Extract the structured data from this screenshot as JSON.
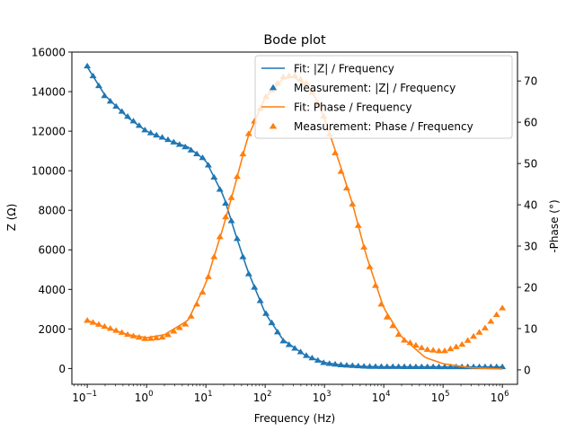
{
  "chart_data": {
    "type": "line",
    "title": "Bode plot",
    "xlabel": "Frequency (Hz)",
    "ylabel_left": "Z (Ω)",
    "ylabel_right": "-Phase (°)",
    "x_scale": "log",
    "xlim": [
      0.055,
      1800000.0
    ],
    "ylim_left": [
      -800,
      16000
    ],
    "ylim_right": [
      -3.5,
      77
    ],
    "x_ticks": [
      0.1,
      1,
      10,
      100,
      1000,
      10000,
      100000,
      1000000
    ],
    "x_tick_labels": [
      {
        "base": "10",
        "exp": "−1"
      },
      {
        "base": "10",
        "exp": "0"
      },
      {
        "base": "10",
        "exp": "1"
      },
      {
        "base": "10",
        "exp": "2"
      },
      {
        "base": "10",
        "exp": "3"
      },
      {
        "base": "10",
        "exp": "4"
      },
      {
        "base": "10",
        "exp": "5"
      },
      {
        "base": "10",
        "exp": "6"
      }
    ],
    "y_left_ticks": [
      0,
      2000,
      4000,
      6000,
      8000,
      10000,
      12000,
      14000,
      16000
    ],
    "y_left_tick_labels": [
      "0",
      "2000",
      "4000",
      "6000",
      "8000",
      "10000",
      "12000",
      "14000",
      "16000"
    ],
    "y_right_ticks": [
      0,
      10,
      20,
      30,
      40,
      50,
      60,
      70
    ],
    "y_right_tick_labels": [
      "0",
      "10",
      "20",
      "30",
      "40",
      "50",
      "60",
      "70"
    ],
    "grid": false,
    "legend_position": "top-right",
    "colors": {
      "impedance": "#1f77b4",
      "phase": "#ff7f0e"
    },
    "series": [
      {
        "name": "Fit: |Z| / Frequency",
        "kind": "line",
        "axis": "left",
        "color": "#1f77b4",
        "x": [
          0.1,
          0.2,
          0.5,
          1,
          2,
          5,
          10,
          20,
          30,
          50,
          100,
          200,
          500,
          1000,
          2000,
          5000,
          10000,
          100000,
          1000000
        ],
        "y": [
          15250,
          13800,
          12650,
          12000,
          11600,
          11200,
          10500,
          8700,
          7000,
          5000,
          2800,
          1450,
          620,
          300,
          170,
          100,
          85,
          80,
          80
        ]
      },
      {
        "name": "Measurement: |Z| / Frequency",
        "kind": "marker",
        "marker": "triangle",
        "axis": "left",
        "color": "#1f77b4",
        "x": [
          0.1,
          0.2,
          0.5,
          1,
          2,
          5,
          10,
          20,
          30,
          50,
          100,
          200,
          500,
          1000,
          2000,
          5000,
          10000,
          100000,
          1000000
        ],
        "y": [
          15300,
          13750,
          12700,
          12000,
          11650,
          11150,
          10550,
          8650,
          7050,
          4950,
          2850,
          1400,
          650,
          280,
          180,
          110,
          100,
          90,
          90
        ]
      },
      {
        "name": "Fit: Phase / Frequency",
        "kind": "line",
        "axis": "right",
        "color": "#ff7f0e",
        "x": [
          0.1,
          0.2,
          0.5,
          1,
          2,
          5,
          10,
          20,
          30,
          50,
          100,
          200,
          300,
          500,
          700,
          1000,
          2000,
          3000,
          5000,
          10000,
          20000,
          50000,
          100000,
          300000,
          1000000
        ],
        "y": [
          12,
          10.3,
          8.5,
          7.8,
          8.5,
          12,
          21,
          35,
          44,
          56,
          66,
          70.5,
          71,
          69,
          66,
          61,
          48,
          40,
          28,
          15,
          8,
          3,
          1.5,
          0.5,
          0.2
        ]
      },
      {
        "name": "Measurement: Phase / Frequency",
        "kind": "marker",
        "marker": "triangle",
        "axis": "right",
        "color": "#ff7f0e",
        "x": [
          0.1,
          0.2,
          0.5,
          1,
          2,
          5,
          10,
          20,
          30,
          50,
          100,
          200,
          300,
          500,
          700,
          1000,
          2000,
          3000,
          5000,
          10000,
          20000,
          50000,
          100000,
          200000,
          500000,
          1000000
        ],
        "y": [
          12,
          10.5,
          8.5,
          7.5,
          8,
          11.5,
          20.5,
          35.5,
          44,
          56.5,
          66,
          71,
          71.5,
          69.5,
          66,
          61,
          47,
          40,
          28,
          14,
          7.5,
          5,
          4.5,
          6,
          10,
          15
        ]
      }
    ]
  }
}
